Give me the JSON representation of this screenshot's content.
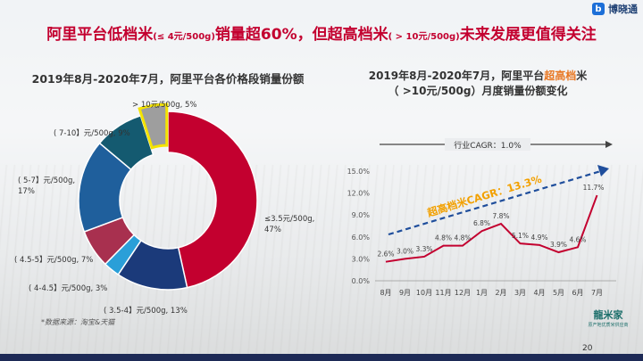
{
  "header": {
    "logo_text": "博晓通",
    "logo_badge": "b",
    "headline_part1": "阿里平台低档米",
    "headline_small1": "(≤ 4元/500g)",
    "headline_part2": "销量超60%，但超高档米",
    "headline_small2": "( > 10元/500g)",
    "headline_part3": "未来发展更值得关注"
  },
  "left_title": "2019年8月-2020年7月，阿里平台各价格段销量份额",
  "right_title_line1_a": "2019年8月-2020年7月，阿里平台",
  "right_title_line1_hl": "超高档",
  "right_title_line1_b": "米",
  "right_title_line2": "（ >10元/500g）月度销量份额变化",
  "source": "*数据来源：淘宝&天猫",
  "page_number": "20",
  "brand": {
    "name": "龍米家",
    "tagline": "原产地优质米供应商"
  },
  "colors": {
    "headline": "#c3002f",
    "accent_orange": "#e87722",
    "line": "#c3002f",
    "arrow": "#1f4e9c"
  },
  "chart_data": [
    {
      "type": "pie",
      "style": "donut",
      "slices": [
        {
          "label": "≤3.5元/500g,",
          "value_label": "47%",
          "value": 47,
          "color": "#c3002f"
        },
        {
          "label": "( 3.5-4】元/500g, 13%",
          "value": 13,
          "color": "#1b3a7a"
        },
        {
          "label": "( 4-4.5】元/500g, 3%",
          "value": 3,
          "color": "#2a9fd8"
        },
        {
          "label": "( 4.5-5】元/500g, 7%",
          "value": 7,
          "color": "#a8304f"
        },
        {
          "label": "( 5-7】元/500g,",
          "value_label": "17%",
          "value": 17,
          "color": "#1f5f9c"
        },
        {
          "label": "( 7-10】元/500g, 9%",
          "value": 9,
          "color": "#145a70"
        },
        {
          "label": "> 10元/500g, 5%",
          "value": 5,
          "color": "#9e9e9e",
          "highlight": true
        }
      ]
    },
    {
      "type": "line",
      "categories": [
        "8月",
        "9月",
        "10月",
        "11月",
        "12月",
        "1月",
        "2月",
        "3月",
        "4月",
        "5月",
        "6月",
        "7月"
      ],
      "values": [
        2.6,
        3.0,
        3.3,
        4.8,
        4.8,
        6.8,
        7.8,
        5.1,
        4.9,
        3.9,
        4.6,
        11.7
      ],
      "data_labels": [
        "2.6%",
        "3.0%",
        "3.3%",
        "4.8%",
        "4.8%",
        "6.8%",
        "7.8%",
        "5.1%",
        "4.9%",
        "3.9%",
        "4.6%",
        "11.7%"
      ],
      "y_ticks": [
        "0.0%",
        "3.0%",
        "6.0%",
        "9.0%",
        "12.0%",
        "15.0%"
      ],
      "ylim": [
        0,
        15
      ],
      "annotations": {
        "industry_cagr": "行业CAGR：1.0%",
        "super_cagr": "超高档米CAGR：13.3%"
      }
    }
  ]
}
